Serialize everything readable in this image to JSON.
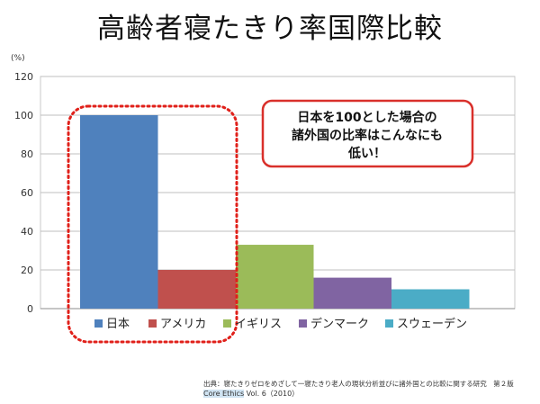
{
  "title": "高齢者寝たきり率国際比較",
  "chart_data": {
    "type": "bar",
    "unit_label": "(%)",
    "categories": [
      "日本",
      "アメリカ",
      "イギリス",
      "デンマーク",
      "スウェーデン"
    ],
    "values": [
      100,
      20,
      33,
      16,
      10
    ],
    "colors": [
      "#4f81bd",
      "#c0504d",
      "#9bbb59",
      "#8064a2",
      "#4bacc6"
    ],
    "ylim": [
      0,
      120
    ],
    "yticks": [
      0,
      20,
      40,
      60,
      80,
      100,
      120
    ],
    "grid": true,
    "legend": [
      "日本",
      "アメリカ",
      "イギリス",
      "デンマーク",
      "スウェーデン"
    ],
    "annotation": {
      "lines": [
        "日本を100とした場合の",
        "諸外国の比率はこんなにも",
        "低い！"
      ],
      "border_color": "#d9302b"
    },
    "highlight_color": "#e0201a"
  },
  "source": {
    "line1": "出典：寝たきりゼロをめざして一寝たきり老人の現状分析並びに諸外国との比較に関する研究　第２版",
    "line2_highlight": "Core Ethics",
    "line2_rest": " Vol. 6（2010）"
  }
}
